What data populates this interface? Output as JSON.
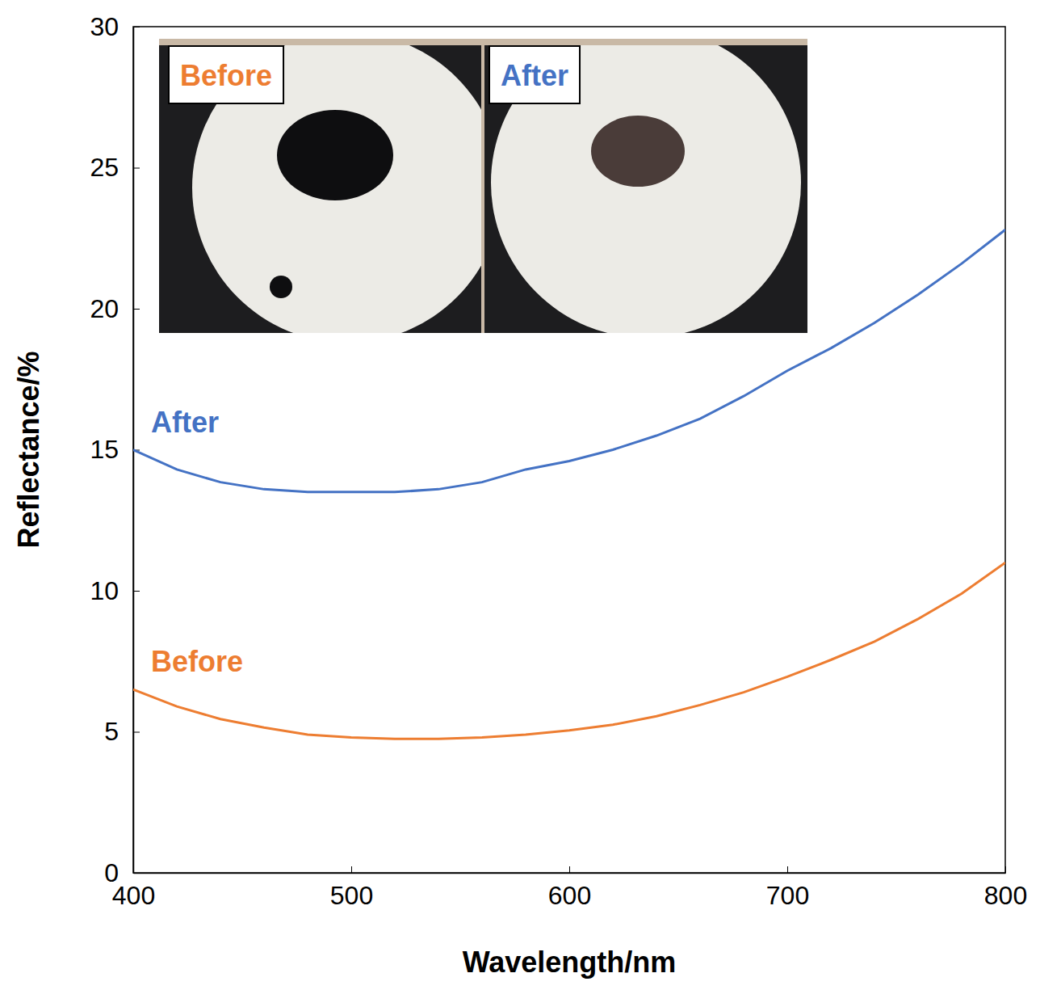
{
  "chart_data": {
    "type": "line",
    "x_label": "Wavelength/nm",
    "y_label": "Reflectance/%",
    "x": [
      400,
      420,
      440,
      460,
      480,
      500,
      520,
      540,
      560,
      580,
      600,
      620,
      640,
      660,
      680,
      700,
      720,
      740,
      760,
      780,
      800
    ],
    "series": [
      {
        "name": "After",
        "color": "#4472c4",
        "values": [
          15.0,
          14.3,
          13.85,
          13.6,
          13.5,
          13.5,
          13.5,
          13.6,
          13.85,
          14.3,
          14.6,
          15.0,
          15.5,
          16.1,
          16.9,
          17.8,
          18.6,
          19.5,
          20.5,
          21.6,
          22.8
        ]
      },
      {
        "name": "Before",
        "color": "#ed7d31",
        "values": [
          6.5,
          5.9,
          5.45,
          5.15,
          4.9,
          4.8,
          4.75,
          4.75,
          4.8,
          4.9,
          5.05,
          5.25,
          5.55,
          5.95,
          6.4,
          6.95,
          7.55,
          8.2,
          9.0,
          9.9,
          11.0
        ]
      }
    ],
    "annotations": [
      "Before",
      "After"
    ],
    "xlim": [
      400,
      800
    ],
    "xticks": [
      400,
      500,
      600,
      700,
      800
    ],
    "ylim": [
      0,
      30
    ],
    "yticks": [
      0,
      5,
      10,
      15,
      20,
      25,
      30
    ],
    "grid": false
  }
}
